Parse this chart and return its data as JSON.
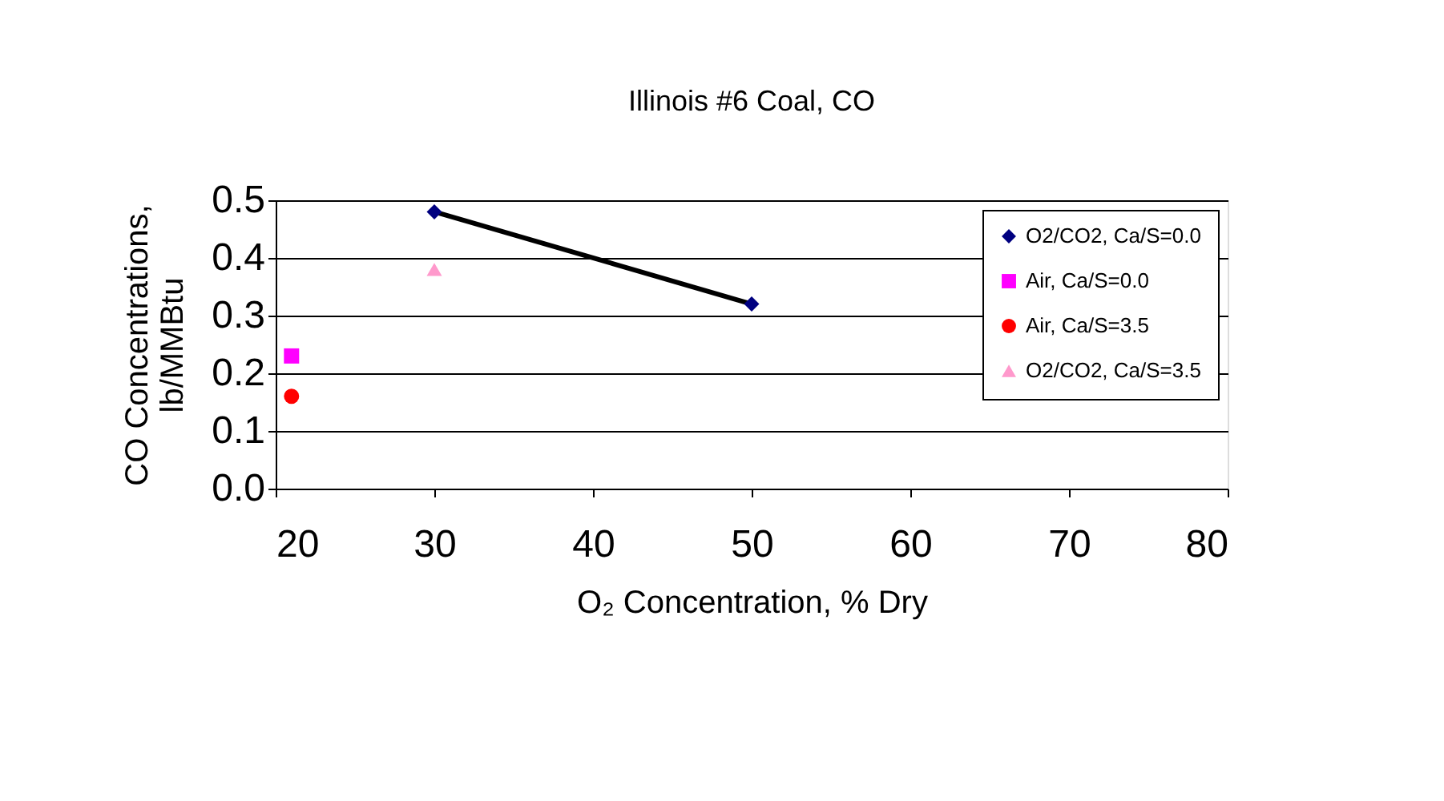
{
  "chart_data": {
    "type": "scatter",
    "title": "Illinois #6 Coal, CO",
    "xlabel": "O₂ Concentration, % Dry",
    "ylabel": "CO Concentrations, lb/MMBtu",
    "series": [
      {
        "name": "O2/CO2, Ca/S=0.0",
        "type": "line",
        "marker": "diamond",
        "color": "#000080",
        "x": [
          30,
          50
        ],
        "values": [
          0.48,
          0.32
        ]
      },
      {
        "name": "Air, Ca/S=0.0",
        "type": "scatter",
        "marker": "square",
        "color": "#ff00ff",
        "x": [
          21
        ],
        "values": [
          0.23
        ]
      },
      {
        "name": "Air, Ca/S=3.5",
        "type": "scatter",
        "marker": "circle",
        "color": "#ff0000",
        "x": [
          21
        ],
        "values": [
          0.16
        ]
      },
      {
        "name": "O2/CO2, Ca/S=3.5",
        "type": "scatter",
        "marker": "triangle",
        "color": "#ff99cc",
        "x": [
          30
        ],
        "values": [
          0.38
        ]
      }
    ],
    "xlim": [
      20,
      80
    ],
    "xticks": [
      20,
      30,
      40,
      50,
      60,
      70,
      80
    ],
    "ylim": [
      0,
      0.5
    ],
    "yticks": [
      {
        "value": 0,
        "label": "0.0"
      },
      {
        "value": 0.1,
        "label": "0.1"
      },
      {
        "value": 0.2,
        "label": "0.2"
      },
      {
        "value": 0.3,
        "label": "0.3"
      },
      {
        "value": 0.4,
        "label": "0.4"
      },
      {
        "value": 0.5,
        "label": "0.5"
      }
    ],
    "grid": "y",
    "legend": "top right"
  }
}
